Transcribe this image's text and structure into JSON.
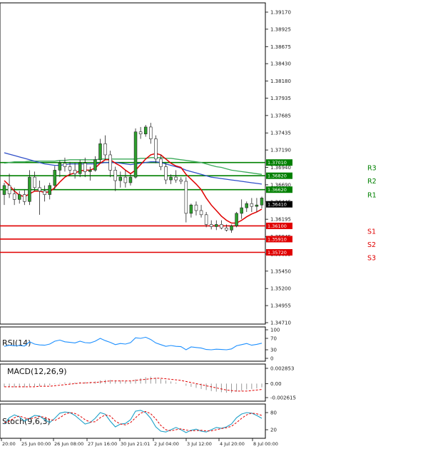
{
  "price_axis": {
    "ticks": [
      "1.39170",
      "1.38925",
      "1.38675",
      "1.38430",
      "1.38180",
      "1.37935",
      "1.37685",
      "1.37435",
      "1.37190",
      "1.36940",
      "1.36690",
      "1.36445",
      "1.36195",
      "1.35945",
      "1.35695",
      "1.35450",
      "1.35200",
      "1.34955",
      "1.34710"
    ],
    "current_price": "1.36410"
  },
  "levels": [
    {
      "name": "R3",
      "value": "1.37010",
      "color": "#008000"
    },
    {
      "name": "R2",
      "value": "1.36820",
      "color": "#008000"
    },
    {
      "name": "R1",
      "value": "1.36620",
      "color": "#008000"
    },
    {
      "name": "S1",
      "value": "1.36100",
      "color": "#e00000"
    },
    {
      "name": "S2",
      "value": "1.35910",
      "color": "#e00000"
    },
    {
      "name": "S3",
      "value": "1.35720",
      "color": "#e00000"
    }
  ],
  "panels": {
    "rsi": {
      "title": "RSI(14)",
      "ticks": [
        "100",
        "70",
        "30",
        "0"
      ]
    },
    "macd": {
      "title": "MACD(12,26,9)",
      "ticks": [
        "0.002853",
        "0.00",
        "-0.002615"
      ]
    },
    "stoch": {
      "title": "Stoch(9,6,3)",
      "ticks": [
        "80",
        "20"
      ]
    }
  },
  "time_axis": [
    "20:00",
    "25 Jun 00:00",
    "26 Jun 08:00",
    "27 Jun 16:00",
    "30 Jun 21:01",
    "2 Jul 04:00",
    "3 Jul 12:00",
    "4 Jul 20:00",
    "8 Jul 00:00"
  ],
  "colors": {
    "bull": "#2ca02c",
    "bear": "#222222",
    "ma_fast": "#e00000",
    "ma_mid": "#3050c8",
    "ma_slow": "#3caa5a",
    "rsi": "#1e90ff",
    "stoch_main": "#1ea0c8",
    "stoch_signal": "#e00000"
  },
  "chart_data": {
    "type": "candlestick",
    "ylim": [
      1.3471,
      1.3917
    ],
    "candles": [
      [
        1.3655,
        1.3672,
        1.364,
        1.3668
      ],
      [
        1.3668,
        1.3685,
        1.365,
        1.3656
      ],
      [
        1.3656,
        1.3665,
        1.364,
        1.3648
      ],
      [
        1.3648,
        1.366,
        1.3642,
        1.3655
      ],
      [
        1.3655,
        1.3662,
        1.364,
        1.3645
      ],
      [
        1.3645,
        1.369,
        1.364,
        1.368
      ],
      [
        1.368,
        1.3688,
        1.366,
        1.3665
      ],
      [
        1.3665,
        1.3675,
        1.3626,
        1.366
      ],
      [
        1.366,
        1.3668,
        1.3645,
        1.3655
      ],
      [
        1.3655,
        1.3672,
        1.3648,
        1.3668
      ],
      [
        1.3668,
        1.3696,
        1.3662,
        1.369
      ],
      [
        1.369,
        1.3704,
        1.368,
        1.37
      ],
      [
        1.37,
        1.3708,
        1.3688,
        1.3695
      ],
      [
        1.3695,
        1.3702,
        1.3682,
        1.369
      ],
      [
        1.369,
        1.37,
        1.3678,
        1.3685
      ],
      [
        1.3685,
        1.3705,
        1.368,
        1.37
      ],
      [
        1.37,
        1.3708,
        1.368,
        1.3688
      ],
      [
        1.3688,
        1.3695,
        1.3675,
        1.369
      ],
      [
        1.369,
        1.371,
        1.3688,
        1.3705
      ],
      [
        1.3705,
        1.3735,
        1.37,
        1.3728
      ],
      [
        1.3728,
        1.374,
        1.3705,
        1.3712
      ],
      [
        1.3712,
        1.3718,
        1.368,
        1.369
      ],
      [
        1.369,
        1.3695,
        1.366,
        1.3675
      ],
      [
        1.3675,
        1.3688,
        1.3665,
        1.368
      ],
      [
        1.368,
        1.369,
        1.3665,
        1.3672
      ],
      [
        1.3672,
        1.3685,
        1.3668,
        1.368
      ],
      [
        1.368,
        1.375,
        1.3678,
        1.3745
      ],
      [
        1.3745,
        1.3752,
        1.3735,
        1.3742
      ],
      [
        1.3742,
        1.3755,
        1.3738,
        1.3752
      ],
      [
        1.3752,
        1.3758,
        1.3728,
        1.3735
      ],
      [
        1.3735,
        1.374,
        1.37,
        1.3706
      ],
      [
        1.3706,
        1.3712,
        1.369,
        1.3695
      ],
      [
        1.3695,
        1.37,
        1.367,
        1.3676
      ],
      [
        1.3676,
        1.3684,
        1.367,
        1.368
      ],
      [
        1.368,
        1.369,
        1.3672,
        1.3676
      ],
      [
        1.3676,
        1.368,
        1.367,
        1.3674
      ],
      [
        1.3674,
        1.368,
        1.3615,
        1.3628
      ],
      [
        1.3628,
        1.3642,
        1.3622,
        1.364
      ],
      [
        1.364,
        1.3645,
        1.3625,
        1.3632
      ],
      [
        1.3632,
        1.364,
        1.3622,
        1.3626
      ],
      [
        1.3626,
        1.363,
        1.3608,
        1.3612
      ],
      [
        1.3612,
        1.3618,
        1.3605,
        1.3609
      ],
      [
        1.3609,
        1.3618,
        1.3604,
        1.3612
      ],
      [
        1.3612,
        1.3618,
        1.3605,
        1.3607
      ],
      [
        1.3607,
        1.3612,
        1.3602,
        1.3604
      ],
      [
        1.3604,
        1.3612,
        1.36,
        1.361
      ],
      [
        1.361,
        1.363,
        1.3608,
        1.3628
      ],
      [
        1.3628,
        1.3648,
        1.362,
        1.3636
      ],
      [
        1.3636,
        1.3645,
        1.363,
        1.3642
      ],
      [
        1.3642,
        1.365,
        1.363,
        1.3638
      ],
      [
        1.3638,
        1.365,
        1.363,
        1.364
      ],
      [
        1.364,
        1.3652,
        1.3635,
        1.365
      ]
    ],
    "ma_fast": [
      1.3675,
      1.3668,
      1.366,
      1.3654,
      1.3652,
      1.3656,
      1.366,
      1.366,
      1.3658,
      1.3659,
      1.3665,
      1.3673,
      1.368,
      1.3684,
      1.3686,
      1.3689,
      1.369,
      1.369,
      1.3693,
      1.37,
      1.3705,
      1.3705,
      1.37,
      1.3696,
      1.369,
      1.3685,
      1.369,
      1.3698,
      1.3706,
      1.3712,
      1.3714,
      1.3712,
      1.3706,
      1.37,
      1.3696,
      1.3694,
      1.3684,
      1.3677,
      1.367,
      1.3662,
      1.365,
      1.364,
      1.3632,
      1.3624,
      1.3618,
      1.3614,
      1.3614,
      1.3618,
      1.3623,
      1.3627,
      1.363,
      1.3634
    ],
    "ma_mid": [
      1.3715,
      1.3713,
      1.3711,
      1.3709,
      1.3707,
      1.3705,
      1.3703,
      1.3701,
      1.3699,
      1.3698,
      1.3697,
      1.3697,
      1.3698,
      1.3699,
      1.3699,
      1.3699,
      1.3699,
      1.3699,
      1.3699,
      1.37,
      1.3701,
      1.3701,
      1.3701,
      1.37,
      1.3699,
      1.3698,
      1.3699,
      1.37,
      1.3701,
      1.3702,
      1.3702,
      1.3701,
      1.3699,
      1.3697,
      1.3695,
      1.3693,
      1.369,
      1.3688,
      1.3686,
      1.3684,
      1.3682,
      1.368,
      1.3679,
      1.3678,
      1.3677,
      1.3676,
      1.3675,
      1.3674,
      1.3673,
      1.3672,
      1.3671,
      1.367
    ],
    "ma_slow": [
      1.37,
      1.3701,
      1.3702,
      1.3702,
      1.3702,
      1.3703,
      1.3703,
      1.3703,
      1.3703,
      1.3703,
      1.3703,
      1.3704,
      1.3704,
      1.3705,
      1.3705,
      1.3705,
      1.3705,
      1.3705,
      1.3705,
      1.3706,
      1.3706,
      1.3706,
      1.3706,
      1.3706,
      1.3706,
      1.3706,
      1.3706,
      1.3707,
      1.3707,
      1.3708,
      1.3708,
      1.3708,
      1.3707,
      1.3707,
      1.3706,
      1.3705,
      1.3704,
      1.3703,
      1.3702,
      1.3701,
      1.3699,
      1.3697,
      1.3695,
      1.3694,
      1.3692,
      1.369,
      1.3689,
      1.3688,
      1.3687,
      1.3686,
      1.3685,
      1.3684
    ],
    "rsi": [
      42,
      46,
      44,
      45,
      43,
      58,
      50,
      47,
      46,
      50,
      60,
      64,
      58,
      56,
      54,
      60,
      55,
      54,
      60,
      70,
      62,
      56,
      48,
      52,
      50,
      55,
      72,
      70,
      74,
      66,
      54,
      48,
      42,
      45,
      42,
      41,
      30,
      40,
      38,
      36,
      31,
      30,
      32,
      31,
      30,
      33,
      44,
      48,
      52,
      46,
      49,
      53
    ],
    "macd_hist": [
      -0.0006,
      -0.0006,
      -0.0007,
      -0.0007,
      -0.0007,
      -0.0005,
      -0.0005,
      -0.0005,
      -0.0004,
      -0.0003,
      -0.0001,
      0.0001,
      0.0002,
      0.0002,
      0.0002,
      0.0003,
      0.0003,
      0.0003,
      0.0004,
      0.0006,
      0.0007,
      0.0007,
      0.0006,
      0.0006,
      0.0005,
      0.0005,
      0.0008,
      0.001,
      0.0012,
      0.0013,
      0.0011,
      0.0009,
      0.0006,
      0.0004,
      0.0002,
      0.0,
      -0.0004,
      -0.0006,
      -0.0008,
      -0.001,
      -0.0012,
      -0.0014,
      -0.0015,
      -0.0016,
      -0.0017,
      -0.0017,
      -0.0015,
      -0.0013,
      -0.0011,
      -0.001,
      -0.0009,
      -0.0007
    ],
    "macd_signal": [
      -0.0006,
      -0.0006,
      -0.0006,
      -0.0006,
      -0.0006,
      -0.0006,
      -0.0006,
      -0.0005,
      -0.0005,
      -0.0005,
      -0.0004,
      -0.0003,
      -0.0002,
      -0.0001,
      0.0,
      0.0001,
      0.0001,
      0.0002,
      0.0002,
      0.0003,
      0.0004,
      0.0005,
      0.0005,
      0.0005,
      0.0005,
      0.0005,
      0.0006,
      0.0007,
      0.0008,
      0.0009,
      0.001,
      0.001,
      0.0009,
      0.0008,
      0.0007,
      0.0006,
      0.0004,
      0.0002,
      0.0,
      -0.0002,
      -0.0004,
      -0.0006,
      -0.0008,
      -0.001,
      -0.0012,
      -0.0013,
      -0.0014,
      -0.0014,
      -0.0014,
      -0.0013,
      -0.0012,
      -0.0011
    ],
    "stoch_main": [
      40,
      62,
      72,
      65,
      50,
      60,
      70,
      68,
      55,
      45,
      60,
      78,
      82,
      80,
      70,
      55,
      40,
      45,
      60,
      80,
      74,
      50,
      30,
      40,
      42,
      55,
      85,
      88,
      80,
      60,
      30,
      15,
      12,
      20,
      28,
      20,
      10,
      18,
      22,
      15,
      12,
      20,
      28,
      25,
      30,
      40,
      62,
      75,
      80,
      78,
      70,
      60
    ],
    "stoch_signal": [
      45,
      50,
      62,
      68,
      62,
      58,
      62,
      66,
      64,
      56,
      52,
      62,
      74,
      80,
      77,
      68,
      55,
      47,
      48,
      62,
      72,
      68,
      50,
      40,
      37,
      45,
      62,
      78,
      84,
      76,
      58,
      35,
      20,
      16,
      20,
      23,
      19,
      16,
      17,
      18,
      16,
      16,
      20,
      24,
      27,
      32,
      45,
      60,
      72,
      78,
      76,
      70
    ]
  }
}
